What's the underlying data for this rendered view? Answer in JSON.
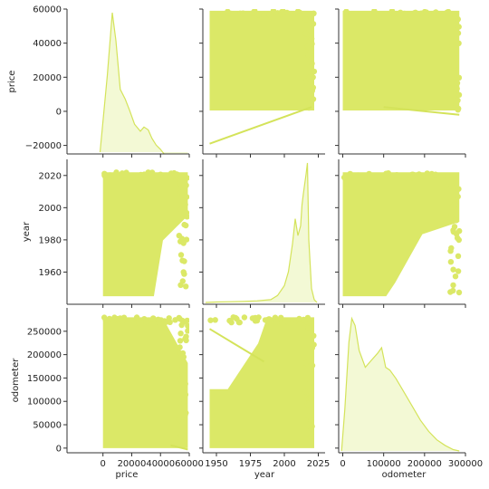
{
  "chart_data": {
    "type": "pairplot",
    "variables": [
      "price",
      "year",
      "odometer"
    ],
    "color": "#dbe867",
    "fill_color": "#f3f9d5",
    "line_color": "#d4e35a",
    "axes": {
      "price": {
        "lim": [
          -25000,
          60000
        ],
        "ticks": [
          0,
          20000,
          40000,
          60000
        ],
        "yticks": [
          -20000,
          0,
          20000,
          40000,
          60000
        ]
      },
      "year": {
        "lim": [
          1940,
          2030
        ],
        "ticks": [
          1950,
          1975,
          2000,
          2025
        ],
        "yticks": [
          1960,
          1980,
          2000,
          2020
        ]
      },
      "odometer": {
        "lim": [
          -10000,
          300000
        ],
        "ticks": [
          0,
          100000,
          200000,
          300000
        ],
        "yticks": [
          0,
          50000,
          100000,
          150000,
          200000,
          250000
        ]
      }
    },
    "tick_labels": {
      "price_x": [
        "0",
        "20000",
        "40000",
        "60000"
      ],
      "price_y": [
        "−20000",
        "0",
        "20000",
        "40000",
        "60000"
      ],
      "year_x": [
        "1950",
        "1975",
        "2000",
        "2025"
      ],
      "year_y": [
        "1960",
        "1980",
        "2000",
        "2020"
      ],
      "odometer_x": [
        "0",
        "100000",
        "200000",
        "300000"
      ],
      "odometer_y": [
        "0",
        "50000",
        "100000",
        "150000",
        "200000",
        "250000"
      ]
    },
    "diagonal_kde": {
      "price": {
        "x": [
          -2000,
          3000,
          6500,
          9000,
          12000,
          15500,
          18500,
          22000,
          26000,
          28500,
          31500,
          34000,
          37000,
          40000,
          43000,
          47000,
          52000,
          56000,
          59000
        ],
        "y": [
          0.0,
          0.55,
          1.0,
          0.8,
          0.45,
          0.38,
          0.3,
          0.2,
          0.15,
          0.18,
          0.16,
          0.1,
          0.05,
          0.02,
          -0.02,
          -0.05,
          -0.05,
          -0.07,
          -0.09
        ]
      },
      "year": {
        "x": [
          1942,
          1950,
          1960,
          1970,
          1980,
          1990,
          1995,
          2000,
          2003,
          2006,
          2008,
          2010,
          2012,
          2013,
          2014,
          2015,
          2016,
          2017,
          2018,
          2020,
          2022,
          2024
        ],
        "y": [
          0.0,
          0.003,
          0.005,
          0.008,
          0.012,
          0.02,
          0.05,
          0.12,
          0.22,
          0.42,
          0.6,
          0.48,
          0.55,
          0.7,
          0.78,
          0.85,
          0.92,
          1.0,
          0.45,
          0.1,
          0.02,
          0.0
        ]
      },
      "odometer": {
        "x": [
          -3000,
          5000,
          15000,
          22000,
          30000,
          40000,
          55000,
          70000,
          85000,
          95000,
          105000,
          115000,
          130000,
          150000,
          170000,
          190000,
          210000,
          230000,
          250000,
          270000,
          285000
        ],
        "y": [
          0.0,
          0.3,
          0.78,
          0.95,
          0.9,
          0.72,
          0.6,
          0.65,
          0.7,
          0.74,
          0.6,
          0.58,
          0.52,
          0.42,
          0.32,
          0.22,
          0.14,
          0.08,
          0.04,
          0.01,
          0.0
        ]
      }
    },
    "scatter_extents": {
      "price_year": {
        "x": [
          1945,
          2022
        ],
        "y": [
          500,
          59000
        ]
      },
      "price_odometer": {
        "x": [
          0,
          285000
        ],
        "y": [
          500,
          59000
        ]
      },
      "year_price": {
        "x": [
          0,
          59000
        ],
        "y": [
          1945,
          2022
        ]
      },
      "year_odometer": {
        "x": [
          0,
          285000
        ],
        "y": [
          1945,
          2022
        ]
      },
      "odometer_price": {
        "x": [
          0,
          59000
        ],
        "y": [
          0,
          280000
        ]
      },
      "odometer_year": {
        "x": [
          1945,
          2022
        ],
        "y": [
          0,
          280000
        ]
      }
    },
    "regression_lines": {
      "price_year": {
        "x": [
          1945,
          2020
        ],
        "y": [
          -19000,
          2500
        ]
      },
      "price_odometer": {
        "x": [
          100000,
          285000
        ],
        "y": [
          2500,
          -2000
        ]
      },
      "odometer_price": {
        "x": [
          47000,
          59000
        ],
        "y": [
          6000,
          -3000
        ]
      },
      "odometer_year": {
        "x": [
          1945,
          1985
        ],
        "y": [
          255000,
          185000
        ]
      }
    }
  }
}
